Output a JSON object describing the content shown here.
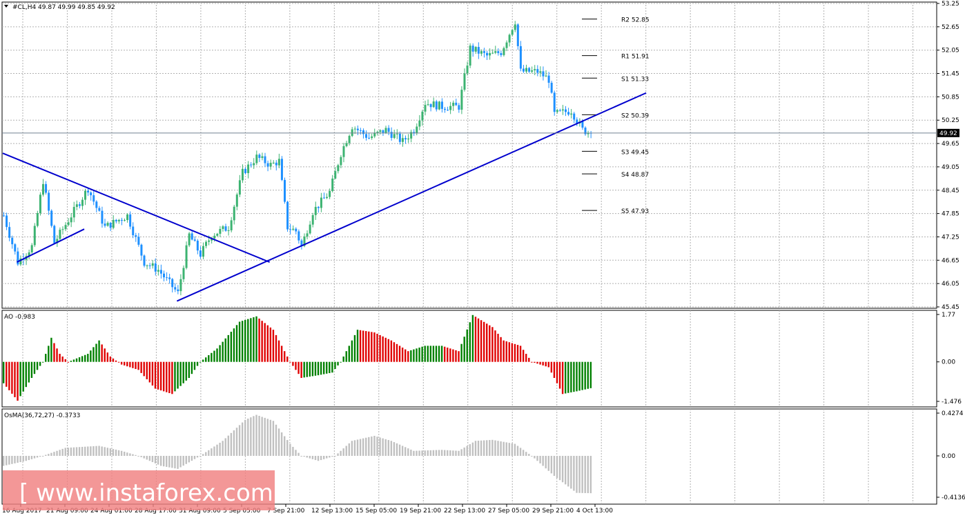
{
  "colors": {
    "background": "#ffffff",
    "grid": "#b0b0b0",
    "bull_candle": "#3cb371",
    "bear_candle": "#1e90ff",
    "trendline": "#0000cd",
    "ao_up": "#008000",
    "ao_down": "#e00000",
    "osma": "#c0c0c0",
    "pivot": "#000000",
    "watermark_bg": "#f08080"
  },
  "header": {
    "symbol_title": "#CL,H4  49.87 49.99 49.85 49.92"
  },
  "indicators": {
    "ao_label": "AO -0.983",
    "osma_label": "OsMA(36,72,27) -0.3733"
  },
  "watermark": {
    "text": "[  www.instaforex.com  ]"
  },
  "chart_data": [
    {
      "type": "candlestick",
      "panel": "main",
      "ylim": [
        45.45,
        53.25
      ],
      "y_ticks": [
        "53.25",
        "52.65",
        "52.05",
        "51.45",
        "50.85",
        "50.25",
        "49.65",
        "49.05",
        "48.45",
        "47.85",
        "47.25",
        "46.65",
        "46.05",
        "45.45"
      ],
      "x_tick_labels": [
        "16 Aug 2017",
        "21 Aug 09:00",
        "24 Aug 01:00",
        "28 Aug 17:00",
        "31 Aug 09:00",
        "5 Sep 05:00",
        "7 Sep 21:00",
        "12 Sep 13:00",
        "15 Sep 05:00",
        "19 Sep 21:00",
        "22 Sep 13:00",
        "27 Sep 05:00",
        "29 Sep 21:00",
        "4 Oct 13:00"
      ],
      "bar_count": 210,
      "current_price": 49.92,
      "current_price_label": "49.92",
      "close_path": [
        {
          "bar": 0,
          "close": 47.8
        },
        {
          "bar": 5,
          "close": 46.6
        },
        {
          "bar": 10,
          "close": 47.0
        },
        {
          "bar": 14,
          "close": 48.7
        },
        {
          "bar": 18,
          "close": 47.1
        },
        {
          "bar": 24,
          "close": 47.8
        },
        {
          "bar": 30,
          "close": 48.5
        },
        {
          "bar": 36,
          "close": 47.5
        },
        {
          "bar": 44,
          "close": 47.8
        },
        {
          "bar": 50,
          "close": 46.6
        },
        {
          "bar": 55,
          "close": 46.4
        },
        {
          "bar": 62,
          "close": 45.8
        },
        {
          "bar": 66,
          "close": 47.3
        },
        {
          "bar": 70,
          "close": 46.8
        },
        {
          "bar": 74,
          "close": 47.3
        },
        {
          "bar": 80,
          "close": 47.5
        },
        {
          "bar": 85,
          "close": 48.9
        },
        {
          "bar": 90,
          "close": 49.3
        },
        {
          "bar": 95,
          "close": 49.1
        },
        {
          "bar": 98,
          "close": 49.2
        },
        {
          "bar": 101,
          "close": 47.5
        },
        {
          "bar": 104,
          "close": 47.4
        },
        {
          "bar": 106,
          "close": 47.0
        },
        {
          "bar": 110,
          "close": 47.9
        },
        {
          "bar": 116,
          "close": 48.4
        },
        {
          "bar": 120,
          "close": 49.4
        },
        {
          "bar": 124,
          "close": 50.1
        },
        {
          "bar": 130,
          "close": 49.8
        },
        {
          "bar": 136,
          "close": 50.0
        },
        {
          "bar": 142,
          "close": 49.7
        },
        {
          "bar": 146,
          "close": 50.0
        },
        {
          "bar": 150,
          "close": 50.7
        },
        {
          "bar": 156,
          "close": 50.6
        },
        {
          "bar": 162,
          "close": 50.6
        },
        {
          "bar": 166,
          "close": 52.1
        },
        {
          "bar": 172,
          "close": 51.9
        },
        {
          "bar": 177,
          "close": 52.0
        },
        {
          "bar": 182,
          "close": 52.8
        },
        {
          "bar": 184,
          "close": 51.5
        },
        {
          "bar": 190,
          "close": 51.5
        },
        {
          "bar": 194,
          "close": 51.3
        },
        {
          "bar": 196,
          "close": 50.4
        },
        {
          "bar": 202,
          "close": 50.5
        },
        {
          "bar": 206,
          "close": 50.0
        },
        {
          "bar": 209,
          "close": 49.92
        }
      ],
      "trendlines": [
        {
          "from": {
            "bar": 0,
            "price": 49.4
          },
          "to": {
            "bar": 95,
            "price": 46.6
          }
        },
        {
          "from": {
            "bar": 5,
            "price": 46.6
          },
          "to": {
            "bar": 29,
            "price": 47.45
          }
        },
        {
          "from": {
            "bar": 62,
            "price": 45.6
          },
          "to": {
            "bar": 229,
            "price": 50.95
          }
        }
      ],
      "pivot_levels": [
        {
          "label": "R2 52.85",
          "price": 52.85
        },
        {
          "label": "R1 51.91",
          "price": 51.91
        },
        {
          "label": "S1 51.33",
          "price": 51.33
        },
        {
          "label": "S2 50.39",
          "price": 50.39
        },
        {
          "label": "S3 49.45",
          "price": 49.45
        },
        {
          "label": "S4 48.87",
          "price": 48.87
        },
        {
          "label": "S5 47.93",
          "price": 47.93
        }
      ]
    },
    {
      "type": "histogram",
      "panel": "ao",
      "name": "AO",
      "last_value": -0.983,
      "ylim": [
        -1.476,
        1.77
      ],
      "y_ticks": [
        "1.77",
        "0.00",
        "-1.476"
      ],
      "path": [
        {
          "bar": 0,
          "value": -0.8
        },
        {
          "bar": 5,
          "value": -1.45
        },
        {
          "bar": 10,
          "value": -0.6
        },
        {
          "bar": 14,
          "value": 0.0
        },
        {
          "bar": 17,
          "value": 0.9
        },
        {
          "bar": 20,
          "value": 0.3
        },
        {
          "bar": 23,
          "value": 0.0
        },
        {
          "bar": 30,
          "value": 0.3
        },
        {
          "bar": 34,
          "value": 0.8
        },
        {
          "bar": 38,
          "value": 0.2
        },
        {
          "bar": 42,
          "value": -0.1
        },
        {
          "bar": 48,
          "value": -0.3
        },
        {
          "bar": 54,
          "value": -1.0
        },
        {
          "bar": 60,
          "value": -1.2
        },
        {
          "bar": 66,
          "value": -0.6
        },
        {
          "bar": 70,
          "value": 0.0
        },
        {
          "bar": 76,
          "value": 0.5
        },
        {
          "bar": 84,
          "value": 1.5
        },
        {
          "bar": 90,
          "value": 1.7
        },
        {
          "bar": 96,
          "value": 1.2
        },
        {
          "bar": 102,
          "value": 0.0
        },
        {
          "bar": 106,
          "value": -0.6
        },
        {
          "bar": 112,
          "value": -0.5
        },
        {
          "bar": 117,
          "value": -0.4
        },
        {
          "bar": 120,
          "value": 0.0
        },
        {
          "bar": 126,
          "value": 1.2
        },
        {
          "bar": 132,
          "value": 1.1
        },
        {
          "bar": 138,
          "value": 0.8
        },
        {
          "bar": 144,
          "value": 0.4
        },
        {
          "bar": 150,
          "value": 0.6
        },
        {
          "bar": 156,
          "value": 0.6
        },
        {
          "bar": 162,
          "value": 0.4
        },
        {
          "bar": 167,
          "value": 1.75
        },
        {
          "bar": 174,
          "value": 1.3
        },
        {
          "bar": 178,
          "value": 0.8
        },
        {
          "bar": 184,
          "value": 0.6
        },
        {
          "bar": 188,
          "value": 0.0
        },
        {
          "bar": 194,
          "value": -0.2
        },
        {
          "bar": 199,
          "value": -1.2
        },
        {
          "bar": 204,
          "value": -1.1
        },
        {
          "bar": 209,
          "value": -0.983
        }
      ]
    },
    {
      "type": "histogram",
      "panel": "osma",
      "name": "OsMA(36,72,27)",
      "last_value": -0.3733,
      "ylim": [
        -0.4136,
        0.4274
      ],
      "y_ticks": [
        "0.4274",
        "0.00",
        "-0.4136"
      ],
      "path": [
        {
          "bar": 0,
          "value": -0.1
        },
        {
          "bar": 8,
          "value": -0.05
        },
        {
          "bar": 14,
          "value": 0.0
        },
        {
          "bar": 22,
          "value": 0.08
        },
        {
          "bar": 34,
          "value": 0.1
        },
        {
          "bar": 42,
          "value": 0.05
        },
        {
          "bar": 48,
          "value": 0.0
        },
        {
          "bar": 56,
          "value": -0.1
        },
        {
          "bar": 62,
          "value": -0.13
        },
        {
          "bar": 70,
          "value": 0.0
        },
        {
          "bar": 78,
          "value": 0.15
        },
        {
          "bar": 86,
          "value": 0.36
        },
        {
          "bar": 90,
          "value": 0.41
        },
        {
          "bar": 96,
          "value": 0.35
        },
        {
          "bar": 102,
          "value": 0.12
        },
        {
          "bar": 106,
          "value": 0.0
        },
        {
          "bar": 112,
          "value": -0.05
        },
        {
          "bar": 118,
          "value": 0.0
        },
        {
          "bar": 124,
          "value": 0.15
        },
        {
          "bar": 132,
          "value": 0.2
        },
        {
          "bar": 138,
          "value": 0.15
        },
        {
          "bar": 146,
          "value": 0.05
        },
        {
          "bar": 156,
          "value": 0.06
        },
        {
          "bar": 162,
          "value": 0.05
        },
        {
          "bar": 168,
          "value": 0.15
        },
        {
          "bar": 174,
          "value": 0.16
        },
        {
          "bar": 182,
          "value": 0.12
        },
        {
          "bar": 188,
          "value": 0.0
        },
        {
          "bar": 196,
          "value": -0.2
        },
        {
          "bar": 204,
          "value": -0.37
        },
        {
          "bar": 209,
          "value": -0.3733
        }
      ]
    }
  ]
}
